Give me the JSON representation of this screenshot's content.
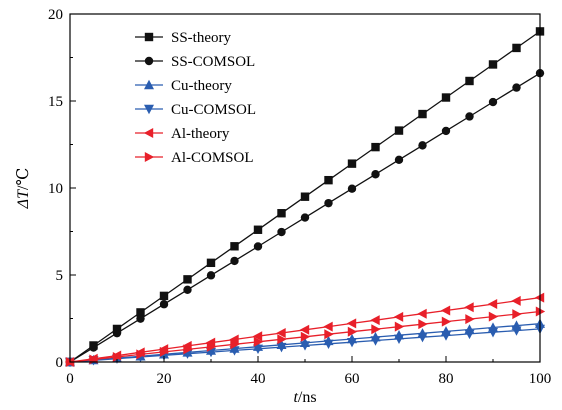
{
  "chart_data": {
    "type": "line",
    "xlabel": {
      "var": "t",
      "unit": "/ns"
    },
    "ylabel": {
      "var": "ΔT",
      "unit": "/℃"
    },
    "xlim": [
      0,
      100
    ],
    "ylim": [
      0,
      20
    ],
    "xticks": [
      0,
      20,
      40,
      60,
      80,
      100
    ],
    "yticks": [
      0,
      5,
      10,
      15,
      20
    ],
    "legend_position": "top-left",
    "grid": false,
    "x": [
      0,
      5,
      10,
      15,
      20,
      25,
      30,
      35,
      40,
      45,
      50,
      55,
      60,
      65,
      70,
      75,
      80,
      85,
      90,
      95,
      100
    ],
    "series": [
      {
        "name": "SS-theory",
        "color": "#111111",
        "marker": "square",
        "slope": 0.19
      },
      {
        "name": "SS-COMSOL",
        "color": "#111111",
        "marker": "circle",
        "slope": 0.166
      },
      {
        "name": "Cu-theory",
        "color": "#2a5db0",
        "marker": "triangle-up",
        "slope": 0.022
      },
      {
        "name": "Cu-COMSOL",
        "color": "#2a5db0",
        "marker": "triangle-down",
        "slope": 0.019
      },
      {
        "name": "Al-theory",
        "color": "#e8202a",
        "marker": "triangle-left",
        "slope": 0.037
      },
      {
        "name": "Al-COMSOL",
        "color": "#e8202a",
        "marker": "triangle-right",
        "slope": 0.029
      }
    ]
  }
}
